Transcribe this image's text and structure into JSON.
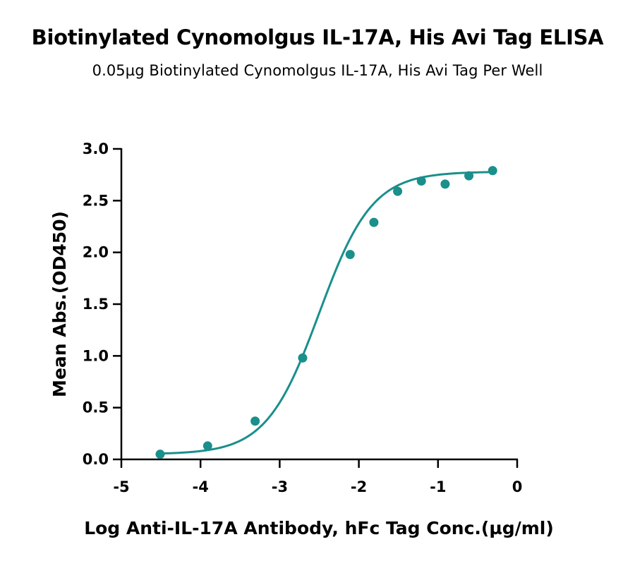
{
  "chart_data": {
    "type": "scatter",
    "title": "Biotinylated Cynomolgus IL-17A, His Avi Tag ELISA",
    "subtitle": "0.05µg Biotinylated Cynomolgus IL-17A, His Avi Tag Per Well",
    "xlabel": "Log Anti-IL-17A Antibody, hFc Tag Conc.(µg/ml)",
    "ylabel": "Mean Abs.(OD450)",
    "xlim": [
      -5,
      0
    ],
    "ylim": [
      0,
      3.0
    ],
    "xticks": [
      "-5",
      "-4",
      "-3",
      "-2",
      "-1",
      "0"
    ],
    "yticks": [
      "0.0",
      "0.5",
      "1.0",
      "1.5",
      "2.0",
      "2.5",
      "3.0"
    ],
    "grid": false,
    "color": "#1a8f8c",
    "series": [
      {
        "x": [
          -4.51,
          -3.91,
          -3.31,
          -2.71,
          -2.11,
          -1.81,
          -1.51,
          -1.21,
          -0.91,
          -0.61,
          -0.31
        ],
        "y": [
          0.05,
          0.13,
          0.37,
          0.98,
          1.98,
          2.29,
          2.59,
          2.69,
          2.66,
          2.74,
          2.79
        ]
      }
    ],
    "fit": {
      "type": "4PL",
      "bottom": 0.05,
      "top": 2.78,
      "logEC50": -2.5,
      "hill": 1.3
    }
  }
}
